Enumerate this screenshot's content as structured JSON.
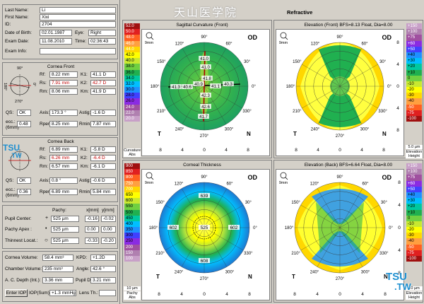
{
  "header": {
    "watermark": "天山医学院",
    "title": "Refractive"
  },
  "patient": {
    "last_name_label": "Last Name:",
    "last_name": "Li",
    "first_name_label": "First Name:",
    "first_name": "Xixi",
    "id_label": "ID:",
    "id": "2704",
    "dob_label": "Date of Birth:",
    "dob": "02.01.1987",
    "eye_label": "Eye:",
    "eye": "Right",
    "exam_date_label": "Exam Date:",
    "exam_date": "11.08.2010",
    "time_label": "Time:",
    "time": "02:36:43",
    "exam_info_label": "Exam Info:",
    "exam_info": ""
  },
  "cornea_front": {
    "title": "Cornea Front",
    "rf_label": "Rf:",
    "rf": "8.22 mm",
    "k1_label": "K1:",
    "k1": "41.1 D",
    "rs_label": "Rs:",
    "rs": "7.91 mm",
    "k2_label": "K2:",
    "k2": "42.7 D",
    "rm_label": "Rm:",
    "rm": "8.06 mm",
    "km_label": "Km:",
    "km": "41.9 D",
    "qs_label": "QS:",
    "qs": "OK",
    "axis_label": "Axis:",
    "axis": "173.3 °",
    "astig_label": "Astig:",
    "astig": "-1.6 D",
    "ecc_label": "ecc.:",
    "ecc_unit": "(6mm)",
    "ecc": "0.48",
    "rper_label": "Rper:",
    "rper": "8.25 mm",
    "rmin_label": "Rmin:",
    "rmin": "7.87 mm"
  },
  "cornea_back": {
    "title": "Cornea Back",
    "rf_label": "Rf:",
    "rf": "6.89 mm",
    "k1_label": "K1:",
    "k1": "-5.8 D",
    "rs_label": "Rs:",
    "rs": "6.26 mm",
    "k2_label": "K2:",
    "k2": "-6.4 D",
    "rm_label": "Rm:",
    "rm": "6.57 mm",
    "km_label": "Km:",
    "km": "-6.1 D",
    "qs_label": "QS:",
    "qs": "OK",
    "axis_label": "Axis:",
    "axis": "0.8 °",
    "astig_label": "Astig:",
    "astig": "-0.6 D",
    "ecc_label": "ecc.:",
    "ecc_unit": "(6mm)",
    "ecc": "0.36",
    "rper_label": "Rper:",
    "rper": "6.89 mm",
    "rmin_label": "Rmin:",
    "rmin": "5.84 mm"
  },
  "pachy": {
    "col_pachy": "Pachy:",
    "col_x": "x[mm]",
    "col_y": "y[mm]",
    "pupil_label": "Pupil Center:",
    "pupil_pachy": "525 µm",
    "pupil_x": "-0.16",
    "pupil_y": "-0.02",
    "apex_label": "Pachy Apex :",
    "apex_pachy": "525 µm",
    "apex_x": "0.00",
    "apex_y": "0.00",
    "thinnest_label": "Thinnest Locat.:",
    "thinnest_pachy": "525 µm",
    "thinnest_x": "-0.33",
    "thinnest_y": "-0.20"
  },
  "chamber": {
    "volume_label": "Cornea Volume:",
    "volume": "58.4 mm³",
    "kpd_label": "KPD:",
    "kpd": "+1.2D",
    "chamber_label": "Chamber Volume:",
    "chamber": "235 mm³",
    "angle_label": "Angle:",
    "angle": "42.6 °",
    "acd_label": "A. C. Depth (Int.):",
    "acd": "3.36 mm",
    "pupil_dia_label": "Pupil Dia:",
    "pupil_dia": "3.21 mm",
    "enter_iop": "Enter IOP",
    "iop_label": "IOP(Sum):",
    "iop": "+1.3 mmHg",
    "lens_label": "Lens Th.:",
    "lens": ""
  },
  "mini_axes": {
    "top": "90°",
    "right": "0°",
    "left": "180°",
    "bottom": "270°"
  },
  "panels": {
    "sagittal": {
      "title": "Sagittal Curvature (Front)",
      "od": "OD",
      "zoom": "9mm",
      "scale_bottom": "Curvature Abs",
      "center_labels": [
        "41.0",
        "40.9",
        "41.8",
        "42.3",
        "42.6",
        "41.7",
        "40.6",
        "41.1",
        "40.3",
        "41.0",
        "41.3"
      ]
    },
    "elev_front": {
      "title": "Elevation (Front) BFS=8.13 Float, Dia=8.00",
      "od": "OD",
      "zoom": "9mm",
      "scale_bottom": "Elevation Height",
      "scale_top": "5.0 µm"
    },
    "thickness": {
      "title": "Corneal Thickness",
      "od": "OD",
      "zoom": "9mm",
      "scale_bottom": "Pachy Abs",
      "scale_top": "10 µm",
      "center_labels": [
        "639",
        "602",
        "525",
        "602",
        "608"
      ]
    },
    "elev_back": {
      "title": "Elevation (Back) BFS=6.64 Float, Dia=8.00",
      "od": "OD",
      "zoom": "9mm",
      "scale_bottom": "Elevation Height",
      "scale_top": "10 µm"
    }
  },
  "polar": {
    "deg90": "90°",
    "deg120": "120°",
    "deg60": "60°",
    "deg150": "150°",
    "deg30": "30°",
    "deg180": "180°",
    "deg0": "0°",
    "deg210": "210°",
    "deg330": "330°",
    "deg240": "240°",
    "deg300": "300°",
    "deg270": "270°",
    "T": "T",
    "N": "N"
  },
  "xaxis_ticks": [
    "8",
    "4",
    "0",
    "4",
    "8"
  ],
  "yaxis_ticks": [
    "8",
    "4",
    "0",
    "4",
    "8"
  ],
  "curvature_scale": [
    "52.0",
    "50.0",
    "48.0",
    "46.0",
    "44.0",
    "42.0",
    "40.0",
    "38.0",
    "36.0",
    "34.0",
    "32.0",
    "30.0",
    "28.0",
    "26.0",
    "24.0",
    "22.0",
    "20.0"
  ],
  "elev_front_scale": [
    "+150",
    "+100",
    "+75",
    "+60",
    "+50",
    "+40",
    "+30",
    "+20",
    "+10",
    "0",
    "-10",
    "-20",
    "-30",
    "-40",
    "-50",
    "-75",
    "-100"
  ],
  "pachy_scale": [
    "900",
    "850",
    "800",
    "750",
    "700",
    "650",
    "600",
    "550",
    "500",
    "450",
    "400",
    "350",
    "300",
    "250",
    "200",
    "150",
    "100"
  ],
  "elev_back_scale": [
    "+150",
    "+100",
    "+75",
    "+60",
    "+50",
    "+40",
    "+30",
    "+20",
    "+10",
    "0",
    "-10",
    "-20",
    "-30",
    "-40",
    "-50",
    "-75",
    "-100"
  ],
  "logo": {
    "tsu": "TSU",
    "tw": ".TW",
    "cn": "TSU",
    "cn2": ".TW"
  },
  "colors": {
    "green": "#22b14c",
    "yellow": "#fff200",
    "blue": "#1e8fd0"
  }
}
